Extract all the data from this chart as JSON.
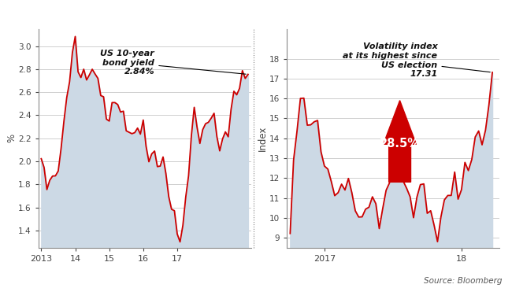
{
  "left_title_line1": "US 10-year",
  "left_title_line2": "bond yield",
  "left_title_value": "2.84%",
  "left_ylabel": "%",
  "left_yticks": [
    1.4,
    1.6,
    1.8,
    2.0,
    2.2,
    2.4,
    2.6,
    2.8,
    3.0
  ],
  "left_ylim": [
    1.25,
    3.15
  ],
  "right_title_line1": "Volatility index",
  "right_title_line2": "at its highest since",
  "right_title_line3": "US election",
  "right_title_value": "17.31",
  "right_arrow_label": "28.5%",
  "right_ylabel": "Index",
  "right_yticks": [
    9,
    10,
    11,
    12,
    13,
    14,
    15,
    16,
    17,
    18
  ],
  "right_ylim": [
    8.5,
    19.5
  ],
  "fill_color": "#ccd9e5",
  "line_color": "#cc0000",
  "arrow_color": "#cc0000",
  "bg_color": "#ffffff",
  "source_text": "Source: Bloomberg",
  "grid_color": "#bbbbbb",
  "tick_color": "#444444",
  "text_color": "#111111"
}
